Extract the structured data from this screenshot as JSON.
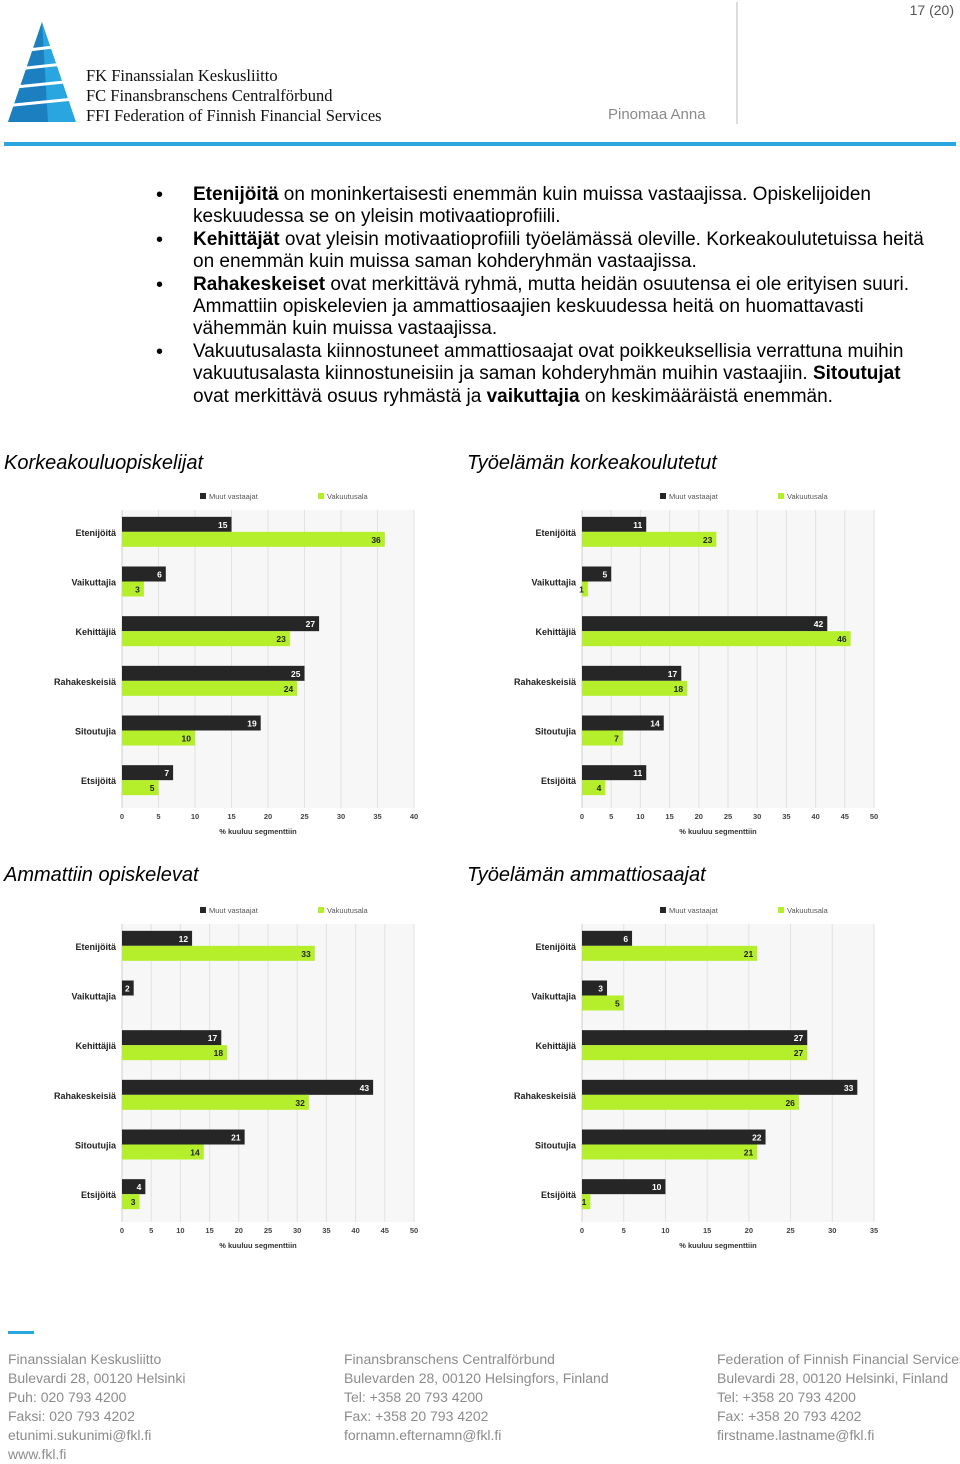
{
  "header": {
    "page_number": "17 (20)",
    "author": "Pinomaa Anna",
    "logo_lines": [
      "FK Finanssialan Keskusliitto",
      "FC Finansbranschens Centralförbund",
      "FFI Federation of Finnish Financial Services"
    ]
  },
  "bullets": [
    [
      {
        "t": "Etenijöitä",
        "b": true
      },
      {
        "t": " on moninkertaisesti enemmän kuin muissa vastaajissa. Opiskelijoiden keskuudessa se on yleisin motivaatioprofiili."
      }
    ],
    [
      {
        "t": "Kehittäjät",
        "b": true
      },
      {
        "t": " ovat yleisin motivaatioprofiili työelämässä oleville. Korkeakoulutetuissa heitä on enemmän kuin muissa saman kohderyhmän vastaajissa."
      }
    ],
    [
      {
        "t": "Rahakeskeiset",
        "b": true
      },
      {
        "t": " ovat merkittävä ryhmä, mutta heidän osuutensa ei ole erityisen suuri. Ammattiin opiskelevien ja ammattiosaajien keskuudessa heitä on huomattavasti vähemmän kuin muissa vastaajissa."
      }
    ],
    [
      {
        "t": "Vakuutusalasta kiinnostuneet ammattiosaajat ovat poikkeuksellisia verrattuna muihin vakuutusalasta kiinnostuneisiin ja saman kohderyhmän muihin vastaajiin. "
      },
      {
        "t": "Sitoutujat",
        "b": true
      },
      {
        "t": " ovat merkittävä osuus ryhmästä ja "
      },
      {
        "t": "vaikuttajia",
        "b": true
      },
      {
        "t": " on keskimääräistä enemmän."
      }
    ]
  ],
  "chart_titles": [
    "Korkeakouluopiskelijat",
    "Työelämän korkeakoulutetut",
    "Ammattiin opiskelevat",
    "Työelämän ammattiosaajat"
  ],
  "chart_data": [
    {
      "type": "bar",
      "orientation": "horizontal",
      "title": "Korkeakouluopiskelijat",
      "categories": [
        "Etenijöitä",
        "Vaikuttajia",
        "Kehittäjiä",
        "Rahakeskeisiä",
        "Sitoutujia",
        "Etsijöitä"
      ],
      "series": [
        {
          "name": "Muut vastaajat",
          "values": [
            15,
            6,
            27,
            25,
            19,
            7
          ],
          "color": "#262626"
        },
        {
          "name": "Vakuutusala",
          "values": [
            36,
            3,
            23,
            24,
            10,
            5
          ],
          "color": "#b5ef2c"
        }
      ],
      "xlim": [
        0,
        40
      ],
      "xticks": [
        0,
        5,
        10,
        15,
        20,
        25,
        30,
        35,
        40
      ],
      "xlabel": "% kuuluu segmenttiin",
      "legend": "top"
    },
    {
      "type": "bar",
      "orientation": "horizontal",
      "title": "Työelämän korkeakoulutetut",
      "categories": [
        "Etenijöitä",
        "Vaikuttajia",
        "Kehittäjiä",
        "Rahakeskeisiä",
        "Sitoutujia",
        "Etsijöitä"
      ],
      "series": [
        {
          "name": "Muut vastaajat",
          "values": [
            11,
            5,
            42,
            17,
            14,
            11
          ],
          "color": "#262626"
        },
        {
          "name": "Vakuutusala",
          "values": [
            23,
            1,
            46,
            18,
            7,
            4
          ],
          "color": "#b5ef2c"
        }
      ],
      "xlim": [
        0,
        50
      ],
      "xticks": [
        0,
        5,
        10,
        15,
        20,
        25,
        30,
        35,
        40,
        45,
        50
      ],
      "xlabel": "% kuuluu segmenttiin",
      "legend": "top"
    },
    {
      "type": "bar",
      "orientation": "horizontal",
      "title": "Ammattiin opiskelevat",
      "categories": [
        "Etenijöitä",
        "Vaikuttajia",
        "Kehittäjiä",
        "Rahakeskeisiä",
        "Sitoutujia",
        "Etsijöitä"
      ],
      "series": [
        {
          "name": "Muut vastaajat",
          "values": [
            12,
            2,
            17,
            43,
            21,
            4
          ],
          "color": "#262626"
        },
        {
          "name": "Vakuutusala",
          "values": [
            33,
            null,
            18,
            32,
            14,
            3
          ],
          "color": "#b5ef2c"
        }
      ],
      "xlim": [
        0,
        50
      ],
      "xticks": [
        0,
        5,
        10,
        15,
        20,
        25,
        30,
        35,
        40,
        45,
        50
      ],
      "xlabel": "% kuuluu segmenttiin",
      "legend": "top"
    },
    {
      "type": "bar",
      "orientation": "horizontal",
      "title": "Työelämän ammattiosaajat",
      "categories": [
        "Etenijöitä",
        "Vaikuttajia",
        "Kehittäjiä",
        "Rahakeskeisiä",
        "Sitoutujia",
        "Etsijöitä"
      ],
      "series": [
        {
          "name": "Muut vastaajat",
          "values": [
            6,
            3,
            27,
            33,
            22,
            10
          ],
          "color": "#262626"
        },
        {
          "name": "Vakuutusala",
          "values": [
            21,
            5,
            27,
            26,
            21,
            1
          ],
          "color": "#b5ef2c"
        }
      ],
      "xlim": [
        0,
        35
      ],
      "xticks": [
        0,
        5,
        10,
        15,
        20,
        25,
        30,
        35
      ],
      "xlabel": "% kuuluu segmenttiin",
      "legend": "top"
    }
  ],
  "footer": {
    "columns": [
      [
        "Finanssialan Keskusliitto",
        "Bulevardi 28, 00120 Helsinki",
        "Puh: 020 793 4200",
        "Faksi: 020 793 4202",
        "etunimi.sukunimi@fkl.fi",
        "www.fkl.fi"
      ],
      [
        "Finansbranschens Centralförbund",
        "Bulevarden 28, 00120 Helsingfors, Finland",
        "Tel: +358 20 793 4200",
        "Fax: +358 20 793 4202",
        "fornamn.efternamn@fkl.fi"
      ],
      [
        "Federation of Finnish Financial Services",
        "Bulevardi 28, 00120 Helsinki, Finland",
        "Tel: +358 20 793 4200",
        "Fax: +358 20 793 4202",
        "firstname.lastname@fkl.fi"
      ]
    ]
  }
}
